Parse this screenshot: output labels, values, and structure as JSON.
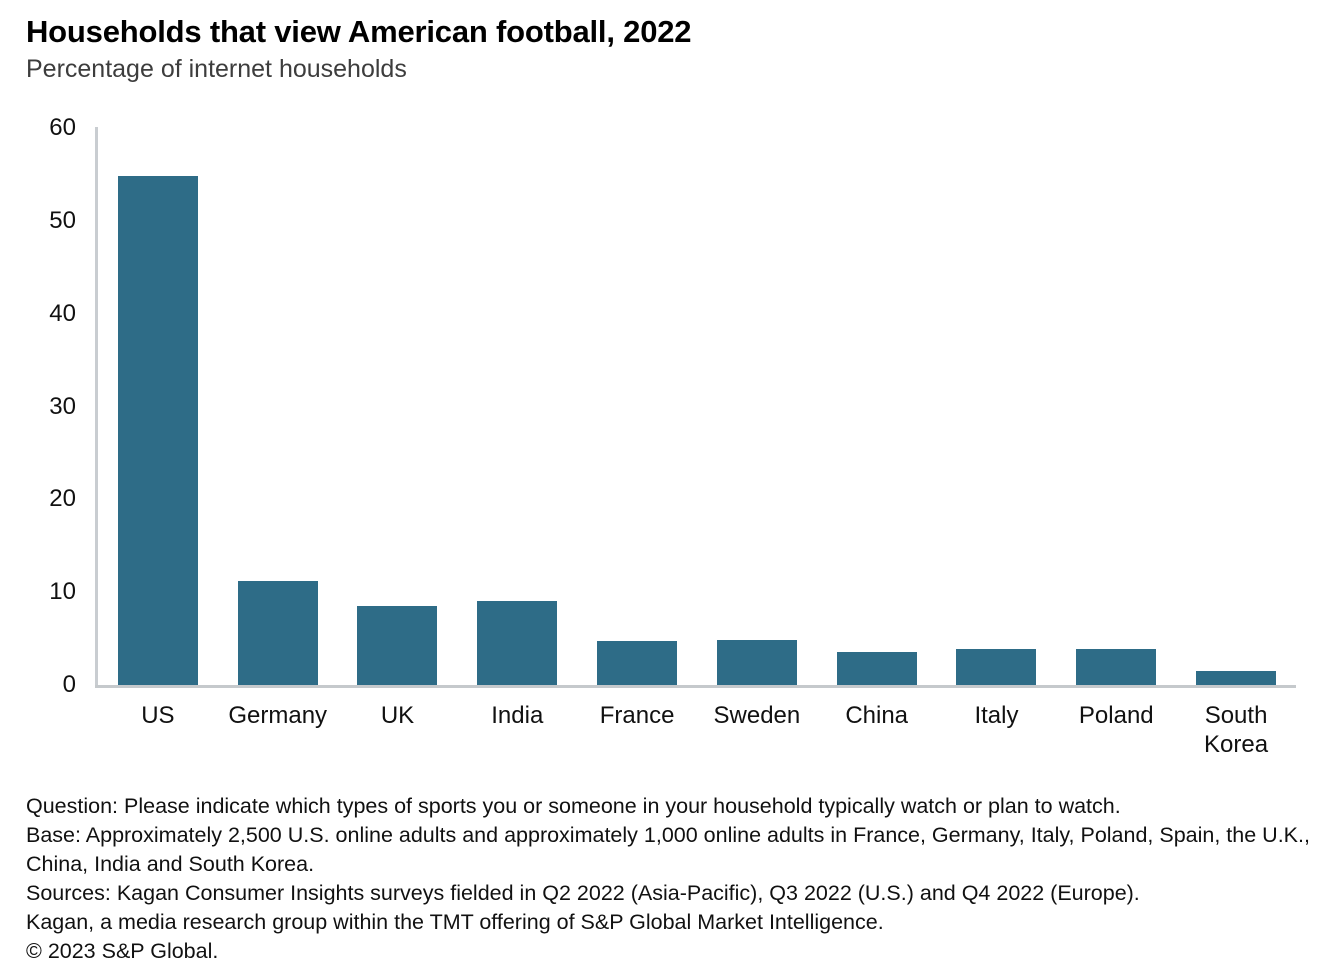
{
  "header": {
    "title": "Households that view American football, 2022",
    "subtitle": "Percentage of internet households"
  },
  "chart_data": {
    "type": "bar",
    "title": "Households that view American football, 2022",
    "subtitle": "Percentage of internet households",
    "categories": [
      "US",
      "Germany",
      "UK",
      "India",
      "France",
      "Sweden",
      "China",
      "Italy",
      "Poland",
      "South Korea"
    ],
    "values": [
      54.8,
      11.2,
      8.5,
      9.1,
      4.7,
      4.8,
      3.6,
      3.9,
      3.9,
      1.5
    ],
    "unit": "percent of internet households",
    "ylim": [
      0,
      60
    ],
    "yticks": [
      0,
      10,
      20,
      30,
      40,
      50,
      60
    ],
    "grid": false,
    "legend_position": "none",
    "bar_color": "#2E6C87",
    "axis_line_color": "#c9cdd1"
  },
  "footnotes": [
    "Question: Please indicate which types of sports you or someone in your household typically watch or plan to watch.",
    "Base: Approximately 2,500 U.S. online adults and approximately 1,000 online adults in France, Germany, Italy, Poland, Spain, the U.K., China, India and South Korea.",
    "Sources: Kagan Consumer Insights surveys fielded in Q2 2022 (Asia-Pacific), Q3 2022 (U.S.) and Q4 2022 (Europe).",
    "Kagan, a media research group within the TMT offering of S&P Global Market Intelligence.",
    "© 2023 S&P Global."
  ]
}
